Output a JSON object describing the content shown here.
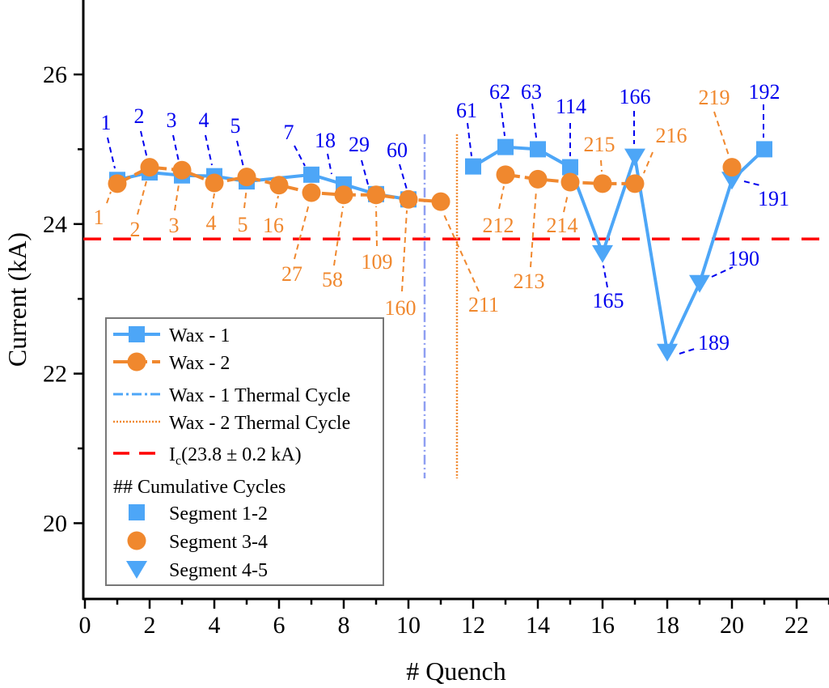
{
  "chart_data": {
    "type": "line",
    "xlabel": "# Quench",
    "ylabel": "Current (kA)",
    "xlim": [
      0,
      23
    ],
    "ylim": [
      19,
      27
    ],
    "xticks": [
      0,
      2,
      4,
      6,
      8,
      10,
      12,
      14,
      16,
      18,
      20,
      22
    ],
    "yticks": [
      20,
      22,
      24,
      26
    ],
    "grid": false,
    "legend_position": "bottom-left",
    "colors": {
      "blue": "#4da6f7",
      "orange": "#f0882e",
      "red": "#ff0000",
      "label_blue": "#0000ee",
      "tc1": "#8f9ff2"
    },
    "series": [
      {
        "name": "Wax - 1",
        "marker": "square",
        "color": "#4da6f7",
        "segments": [
          {
            "x": [
              1,
              2,
              3,
              4,
              5,
              7,
              8,
              9,
              10
            ],
            "y": [
              24.59,
              24.69,
              24.65,
              24.64,
              24.57,
              24.66,
              24.53,
              24.4,
              24.33
            ]
          },
          {
            "x": [
              12,
              13,
              14,
              15,
              16,
              17,
              18,
              19,
              20,
              21
            ],
            "y": [
              24.77,
              25.03,
              25.0,
              24.76,
              23.61,
              24.9,
              22.29,
              23.21,
              24.59,
              25.0
            ],
            "markers": [
              "square",
              "square",
              "square",
              "square",
              "triangle",
              "triangle",
              "triangle",
              "triangle",
              "triangle",
              "square"
            ]
          }
        ]
      },
      {
        "name": "Wax - 2",
        "marker": "circle",
        "color": "#f0882e",
        "segments": [
          {
            "x": [
              1,
              2,
              3,
              4,
              5,
              6,
              7,
              8,
              9,
              10,
              11
            ],
            "y": [
              24.54,
              24.76,
              24.72,
              24.55,
              24.63,
              24.52,
              24.42,
              24.39,
              24.39,
              24.33,
              24.3
            ]
          },
          {
            "x": [
              13,
              14,
              15,
              16,
              17
            ],
            "y": [
              24.66,
              24.6,
              24.56,
              24.54,
              24.54
            ]
          },
          {
            "x": [
              20
            ],
            "y": [
              24.76
            ]
          }
        ]
      }
    ],
    "thermal_cycles": [
      {
        "name": "Wax - 1 Thermal Cycle",
        "x": 10.5,
        "y_range": [
          20.6,
          25.2
        ]
      },
      {
        "name": "Wax - 2 Thermal Cycle",
        "x": 11.5,
        "y_range": [
          20.6,
          25.2
        ]
      }
    ],
    "ic_line": {
      "value": 23.8,
      "label_main": "I",
      "label_sub": "c",
      "label_rest": "(23.8 ± 0.2 kA)"
    },
    "annotations_blue": [
      {
        "text": "1",
        "x": 1
      },
      {
        "text": "2",
        "x": 2
      },
      {
        "text": "3",
        "x": 3
      },
      {
        "text": "4",
        "x": 4
      },
      {
        "text": "5",
        "x": 5
      },
      {
        "text": "7",
        "x": 7
      },
      {
        "text": "18",
        "x": 8
      },
      {
        "text": "29",
        "x": 9
      },
      {
        "text": "60",
        "x": 10
      },
      {
        "text": "61",
        "x": 12
      },
      {
        "text": "62",
        "x": 13
      },
      {
        "text": "63",
        "x": 14
      },
      {
        "text": "114",
        "x": 15
      },
      {
        "text": "165",
        "x": 16
      },
      {
        "text": "166",
        "x": 17
      },
      {
        "text": "189",
        "x": 18
      },
      {
        "text": "190",
        "x": 19
      },
      {
        "text": "191",
        "x": 20
      },
      {
        "text": "192",
        "x": 21
      }
    ],
    "annotations_orange": [
      {
        "text": "1",
        "x": 1
      },
      {
        "text": "2",
        "x": 2
      },
      {
        "text": "3",
        "x": 3
      },
      {
        "text": "4",
        "x": 4
      },
      {
        "text": "5",
        "x": 5
      },
      {
        "text": "16",
        "x": 6
      },
      {
        "text": "27",
        "x": 7
      },
      {
        "text": "58",
        "x": 8
      },
      {
        "text": "109",
        "x": 9
      },
      {
        "text": "160",
        "x": 10
      },
      {
        "text": "211",
        "x": 11
      },
      {
        "text": "212",
        "x": 13
      },
      {
        "text": "213",
        "x": 14
      },
      {
        "text": "214",
        "x": 15
      },
      {
        "text": "215",
        "x": 16
      },
      {
        "text": "216",
        "x": 17
      },
      {
        "text": "219",
        "x": 20
      }
    ],
    "legend": {
      "items": [
        "Wax - 1",
        "Wax - 2",
        "Wax - 1 Thermal Cycle",
        "Wax - 2 Thermal Cycle"
      ],
      "header": "## Cumulative Cycles",
      "segments": [
        "Segment 1-2",
        "Segment 3-4",
        "Segment 4-5"
      ]
    }
  }
}
